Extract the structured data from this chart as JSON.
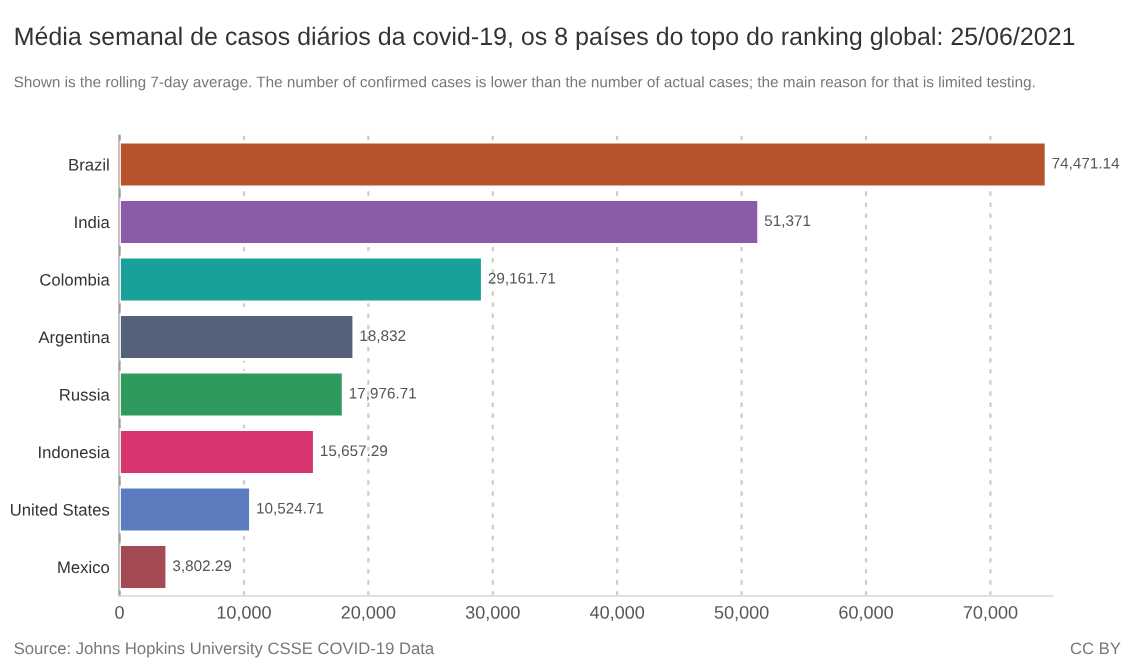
{
  "chart_data": {
    "type": "bar",
    "orientation": "horizontal",
    "title": "Média semanal de casos diários da covid-19, os 8 países do topo do ranking global: 25/06/2021",
    "subtitle": "Shown is the rolling 7-day average. The number of confirmed cases is lower than the number of actual cases; the main reason for that is limited testing.",
    "categories": [
      "Brazil",
      "India",
      "Colombia",
      "Argentina",
      "Russia",
      "Indonesia",
      "United States",
      "Mexico"
    ],
    "values": [
      74471.14,
      51371,
      29161.71,
      18832,
      17976.71,
      15657.29,
      10524.71,
      3802.29
    ],
    "value_labels": [
      "74,471.14",
      "51,371",
      "29,161.71",
      "18,832",
      "17,976.71",
      "15,657.29",
      "10,524.71",
      "3,802.29"
    ],
    "colors": [
      "#b9532b",
      "#8b5ba8",
      "#18a09a",
      "#556178",
      "#2f9a5e",
      "#d7356f",
      "#5b7cbf",
      "#a44a55"
    ],
    "xlim": [
      0,
      75000
    ],
    "xticks": [
      0,
      {
        "value": 10000,
        "label": "10,000"
      },
      {
        "value": 20000,
        "label": "20,000"
      },
      {
        "value": 30000,
        "label": "30,000"
      },
      {
        "value": 40000,
        "label": "40,000"
      },
      {
        "value": 50000,
        "label": "50,000"
      },
      {
        "value": 60000,
        "label": "60,000"
      },
      {
        "value": 70000,
        "label": "70,000"
      }
    ],
    "grid": "x",
    "annotations": [
      "Source: Johns Hopkins University CSSE COVID-19 Data",
      "CC BY"
    ]
  }
}
